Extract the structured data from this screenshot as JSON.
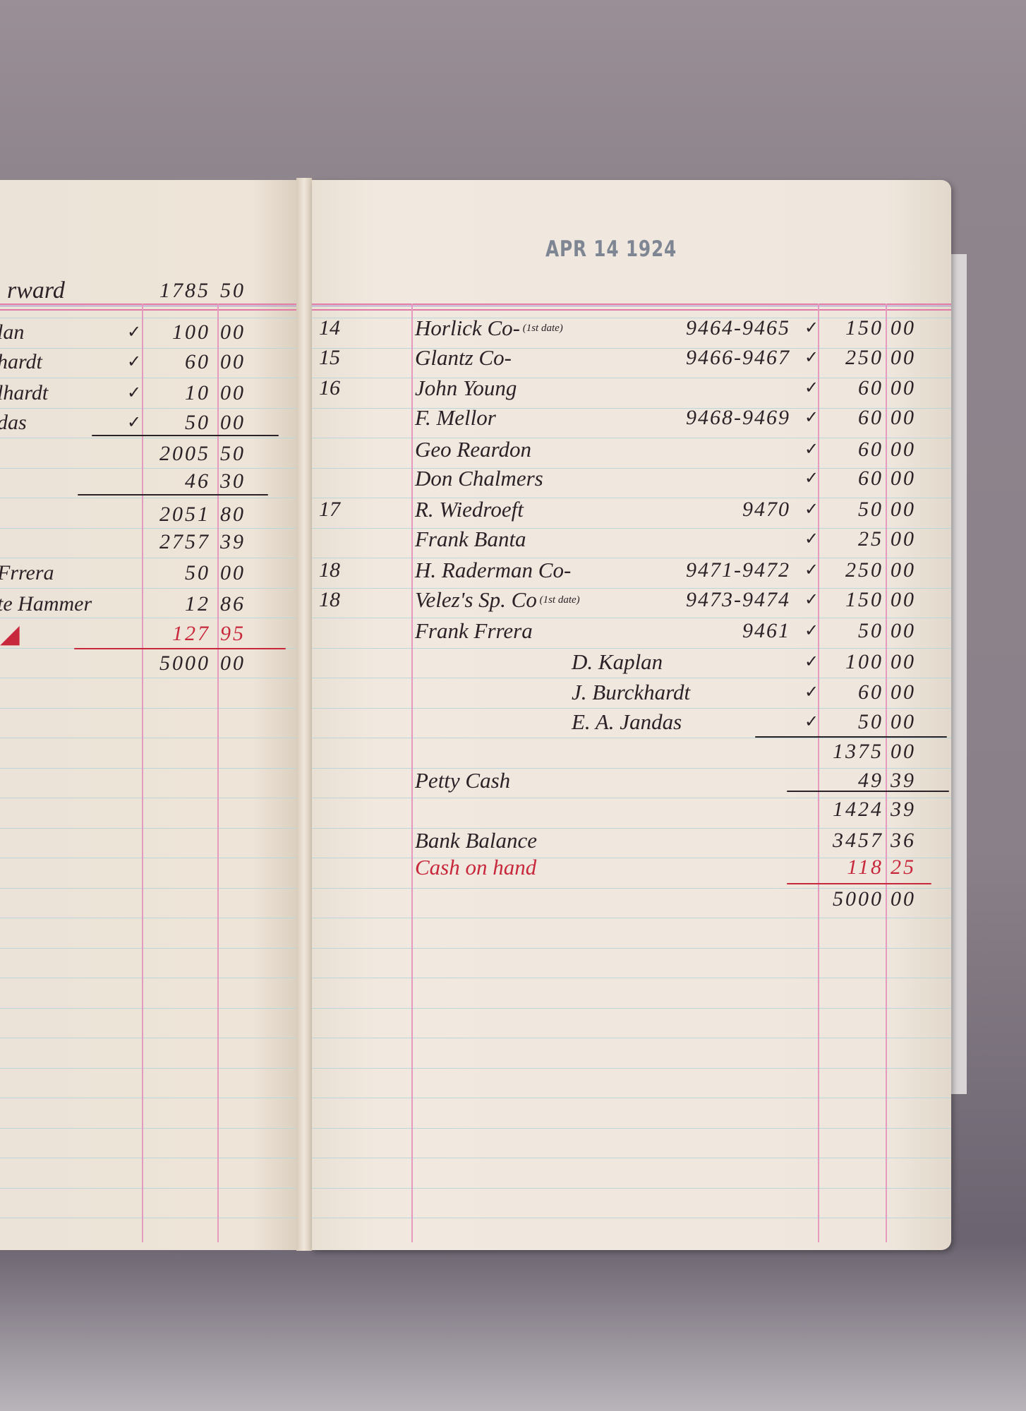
{
  "stamp": "APR 14 1924",
  "colors": {
    "ink": "#2a2226",
    "red_ink": "#c8283c",
    "margin_rule": "#e59ac0",
    "line_rule": "#b9d7d9"
  },
  "left_page": {
    "carried_forward": {
      "label": "rward",
      "dollars": "1785",
      "cents": "50"
    },
    "rows": [
      {
        "name": "lan",
        "check": "✓",
        "dollars": "100",
        "cents": "00"
      },
      {
        "name": "hardt",
        "check": "✓",
        "dollars": "60",
        "cents": "00"
      },
      {
        "name": "lhardt",
        "check": "✓",
        "dollars": "10",
        "cents": "00"
      },
      {
        "name": "das",
        "check": "✓",
        "dollars": "50",
        "cents": "00"
      },
      {
        "name": "",
        "check": "",
        "dollars": "2005",
        "cents": "50"
      },
      {
        "name": "",
        "check": "",
        "dollars": "46",
        "cents": "30"
      },
      {
        "name": "",
        "check": "",
        "dollars": "2051",
        "cents": "80"
      },
      {
        "name": "",
        "check": "",
        "dollars": "2757",
        "cents": "39"
      },
      {
        "name": "Frrera",
        "check": "",
        "dollars": "50",
        "cents": "00"
      },
      {
        "name": "te Hammer",
        "check": "",
        "dollars": "12",
        "cents": "86"
      },
      {
        "name": "",
        "check": "",
        "dollars": "127",
        "cents": "95",
        "color": "red",
        "mark": "red-check-mark"
      },
      {
        "name": "",
        "check": "",
        "dollars": "5000",
        "cents": "00"
      }
    ]
  },
  "right_page": {
    "rows": [
      {
        "date": "14",
        "name": "Horlick Co-",
        "note": "(1st date)",
        "ref": "9464-9465",
        "check": "✓",
        "dollars": "150",
        "cents": "00"
      },
      {
        "date": "15",
        "name": "Glantz Co-",
        "ref": "9466-9467",
        "check": "✓",
        "dollars": "250",
        "cents": "00"
      },
      {
        "date": "16",
        "name": "John Young",
        "ref": "",
        "check": "✓",
        "dollars": "60",
        "cents": "00"
      },
      {
        "date": "",
        "name": "F. Mellor",
        "ref": "9468-9469",
        "check": "✓",
        "dollars": "60",
        "cents": "00"
      },
      {
        "date": "",
        "name": "Geo Reardon",
        "ref": "",
        "check": "✓",
        "dollars": "60",
        "cents": "00"
      },
      {
        "date": "",
        "name": "Don Chalmers",
        "ref": "",
        "check": "✓",
        "dollars": "60",
        "cents": "00"
      },
      {
        "date": "17",
        "name": "R. Wiedroeft",
        "ref": "9470",
        "check": "✓",
        "dollars": "50",
        "cents": "00"
      },
      {
        "date": "",
        "name": "Frank Banta",
        "ref": "",
        "check": "✓",
        "dollars": "25",
        "cents": "00"
      },
      {
        "date": "18",
        "name": "H. Raderman Co-",
        "ref": "9471-9472",
        "check": "✓",
        "dollars": "250",
        "cents": "00"
      },
      {
        "date": "18",
        "name": "Velez's Sp. Co",
        "note": "(1st date)",
        "ref": "9473-9474",
        "check": "✓",
        "dollars": "150",
        "cents": "00"
      },
      {
        "date": "",
        "name": "Frank Frrera",
        "ref": "9461",
        "check": "✓",
        "dollars": "50",
        "cents": "00"
      },
      {
        "date": "",
        "name": "D. Kaplan",
        "indent": true,
        "ref": "",
        "check": "✓",
        "dollars": "100",
        "cents": "00"
      },
      {
        "date": "",
        "name": "J. Burckhardt",
        "indent": true,
        "ref": "",
        "check": "✓",
        "dollars": "60",
        "cents": "00"
      },
      {
        "date": "",
        "name": "E. A. Jandas",
        "indent": true,
        "ref": "",
        "check": "✓",
        "dollars": "50",
        "cents": "00"
      },
      {
        "date": "",
        "name": "",
        "ref": "",
        "check": "",
        "dollars": "1375",
        "cents": "00"
      },
      {
        "date": "",
        "name": "Petty Cash",
        "ref": "",
        "check": "",
        "dollars": "49",
        "cents": "39"
      },
      {
        "date": "",
        "name": "",
        "ref": "",
        "check": "",
        "dollars": "1424",
        "cents": "39"
      },
      {
        "date": "",
        "name": "Bank Balance",
        "ref": "",
        "check": "",
        "dollars": "3457",
        "cents": "36"
      },
      {
        "date": "",
        "name": "Cash on hand",
        "ref": "",
        "check": "",
        "dollars": "118",
        "cents": "25",
        "color": "red"
      },
      {
        "date": "",
        "name": "",
        "ref": "",
        "check": "",
        "dollars": "5000",
        "cents": "00"
      }
    ]
  }
}
